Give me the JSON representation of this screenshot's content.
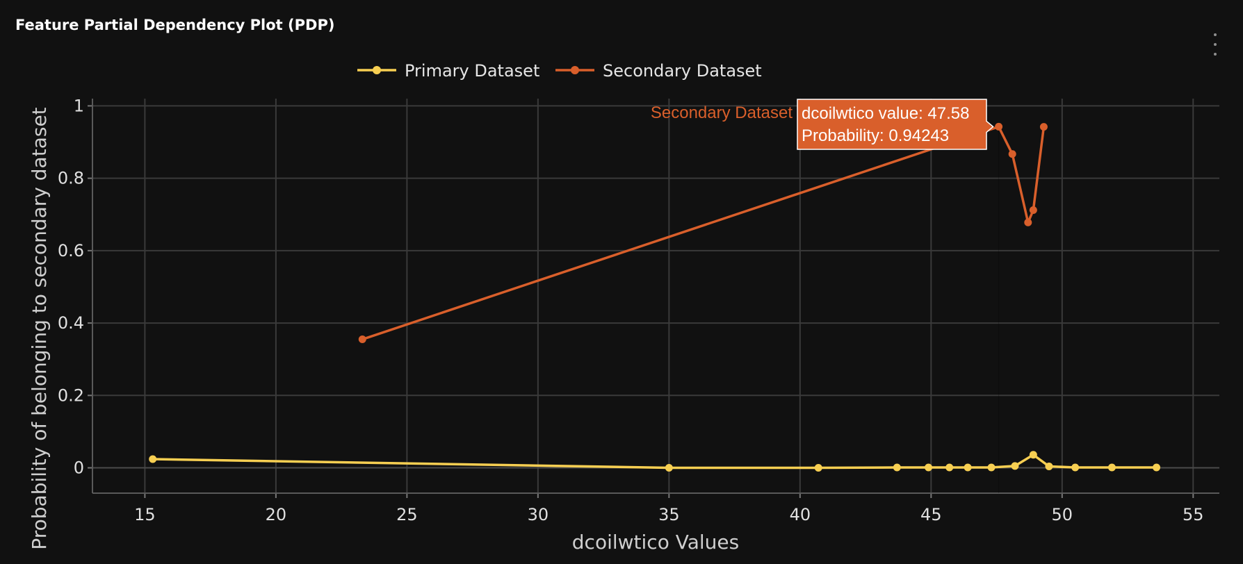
{
  "panel": {
    "title": "Feature Partial Dependency Plot (PDP)",
    "menu_icon": "vertical-ellipsis-icon"
  },
  "colors": {
    "background": "#111111",
    "grid": "#3a3a3a",
    "primary": "#f7cf52",
    "secondary": "#d95f2b"
  },
  "chart_data": {
    "type": "line",
    "title": "",
    "xlabel": "dcoilwtico Values",
    "ylabel": "Probability of belonging to secondary dataset",
    "xlim": [
      13,
      56
    ],
    "ylim": [
      -0.07,
      1.02
    ],
    "x_ticks": [
      15,
      20,
      25,
      30,
      35,
      40,
      45,
      50,
      55
    ],
    "y_ticks": [
      0,
      0.2,
      0.4,
      0.6,
      0.8,
      1
    ],
    "grid": true,
    "legend_position": "top-center",
    "series": [
      {
        "name": "Primary Dataset",
        "color": "#f7cf52",
        "x": [
          15.3,
          35.0,
          40.7,
          43.7,
          44.9,
          45.7,
          46.4,
          47.3,
          48.2,
          48.9,
          49.5,
          50.5,
          51.9,
          53.6
        ],
        "y": [
          0.024,
          0.0,
          0.0,
          0.001,
          0.001,
          0.001,
          0.001,
          0.001,
          0.005,
          0.036,
          0.004,
          0.001,
          0.001,
          0.001
        ]
      },
      {
        "name": "Secondary Dataset",
        "color": "#d95f2b",
        "x": [
          23.3,
          47.58,
          48.1,
          48.7,
          48.9,
          49.3
        ],
        "y": [
          0.355,
          0.94243,
          0.867,
          0.678,
          0.712,
          0.942
        ]
      }
    ],
    "hover": {
      "series_label": "Secondary Dataset",
      "line1": "dcoilwtico value: 47.58",
      "line2": "Probability: 0.94243",
      "point_x": 47.58,
      "point_y": 0.94243
    }
  }
}
